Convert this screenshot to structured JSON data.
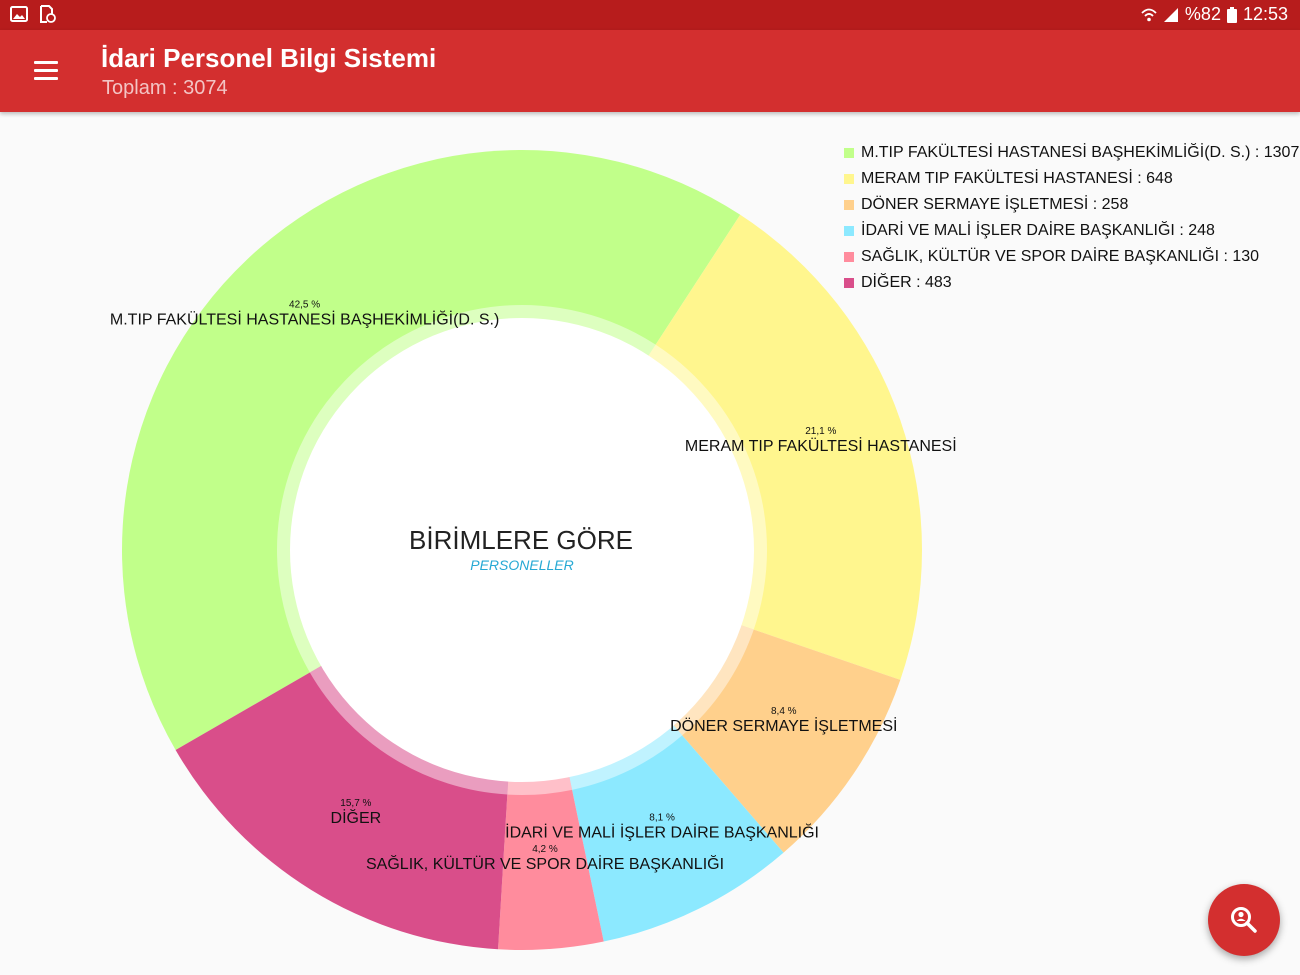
{
  "status_bar": {
    "battery": "%82",
    "time": "12:53",
    "icons": [
      "image-icon",
      "file-sync-icon",
      "wifi-icon",
      "signal-icon",
      "battery-icon"
    ]
  },
  "app_bar": {
    "title": "İdari Personel Bilgi Sistemi",
    "subtitle": "Toplam : 3074",
    "menu_icon": "menu-icon"
  },
  "legend": {
    "items": [
      {
        "text": "M.TIP FAKÜLTESİ HASTANESİ BAŞHEKİMLİĞİ(D. S.) : 1307",
        "color": "#c1ff8a"
      },
      {
        "text": "MERAM TIP FAKÜLTESİ HASTANESİ : 648",
        "color": "#fff68e"
      },
      {
        "text": "DÖNER SERMAYE İŞLETMESİ : 258",
        "color": "#ffd08c"
      },
      {
        "text": "İDARİ VE MALİ İŞLER DAİRE BAŞKANLIĞI : 248",
        "color": "#8ce9ff"
      },
      {
        "text": "SAĞLIK, KÜLTÜR VE SPOR DAİRE BAŞKANLIĞI : 130",
        "color": "#ff8c9d"
      },
      {
        "text": "DİĞER : 483",
        "color": "#d94e8a"
      }
    ]
  },
  "chart_data": {
    "type": "pie",
    "center_title": "BİRİMLERE GÖRE",
    "center_subtitle": "PERSONELLER",
    "center_subtitle_color": "#26a9d4",
    "slices": [
      {
        "label": "M.TIP FAKÜLTESİ HASTANESİ BAŞHEKİMLİĞİ(D. S.)",
        "value": 1307,
        "percent_label": "42,5 %",
        "color": "#c1ff8a"
      },
      {
        "label": "MERAM TIP FAKÜLTESİ HASTANESİ",
        "value": 648,
        "percent_label": "21,1 %",
        "color": "#fff68e"
      },
      {
        "label": "DÖNER SERMAYE İŞLETMESİ",
        "value": 258,
        "percent_label": "8,4 %",
        "color": "#ffd08c"
      },
      {
        "label": "İDARİ VE MALİ İŞLER DAİRE BAŞKANLIĞI",
        "value": 248,
        "percent_label": "8,1 %",
        "color": "#8ce9ff"
      },
      {
        "label": "SAĞLIK, KÜLTÜR VE SPOR DAİRE BAŞKANLIĞI",
        "value": 130,
        "percent_label": "4,2 %",
        "color": "#ff8c9d"
      },
      {
        "label": "DİĞER",
        "value": 483,
        "percent_label": "15,7 %",
        "color": "#d94e8a"
      }
    ]
  },
  "fab": {
    "icon": "person-search-icon"
  }
}
